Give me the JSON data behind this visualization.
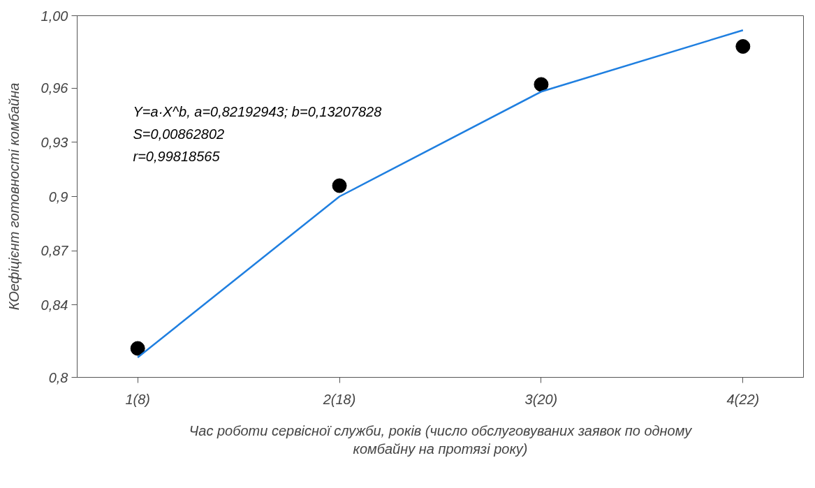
{
  "chart_data": {
    "type": "scatter",
    "xlabel": "Час роботи сервісної служби, років (число обслуговуваних заявок по одному комбайну на протязі року)",
    "ylabel": "КОефіцієнт готовності комбайна",
    "annotations": [
      "Y=a·X^b, a=0,82192943; b=0,13207828",
      "S=0,00862802",
      "r=0,99818565"
    ],
    "categories": [
      "1(8)",
      "2(18)",
      "3(20)",
      "4(22)"
    ],
    "ylim": [
      0.8,
      1.0
    ],
    "yticks": [
      {
        "value": 0.8,
        "label": "0,8"
      },
      {
        "value": 0.84,
        "label": "0,84"
      },
      {
        "value": 0.87,
        "label": "0,87"
      },
      {
        "value": 0.9,
        "label": "0,9"
      },
      {
        "value": 0.93,
        "label": "0,93"
      },
      {
        "value": 0.96,
        "label": "0,96"
      },
      {
        "value": 1.0,
        "label": "1,00"
      }
    ],
    "grid": false,
    "series": [
      {
        "color": "#000000",
        "marker": "circle",
        "values": [
          0.816,
          0.906,
          0.962,
          0.983
        ]
      },
      {
        "type": "line",
        "color": "#1f7fe0",
        "line_style": "solid",
        "values": [
          0.811,
          0.9,
          0.958,
          0.992
        ]
      }
    ]
  }
}
